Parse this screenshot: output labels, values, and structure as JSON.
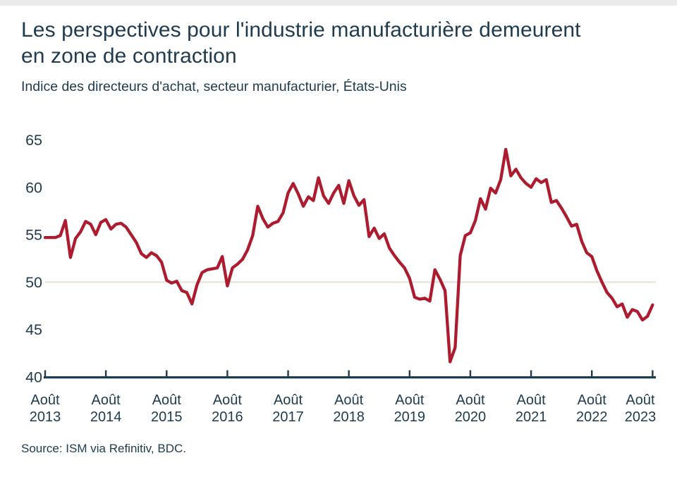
{
  "colors": {
    "line_red": "#AE1B2E",
    "text_navy": "#1E3B4F",
    "reference_beige": "#E7DFD2",
    "top_strip_gray": "#EBEBEB",
    "background": "#FFFFFF"
  },
  "chart_data": {
    "type": "line",
    "title": "Les perspectives pour l'industrie manufacturière demeurent en zone de contraction",
    "subtitle": "Indice des directeurs d'achat, secteur manufacturier, États-Unis",
    "source": "Source: ISM via Refinitiv, BDC.",
    "ylabel": "",
    "xlabel": "",
    "ylim": [
      40,
      65
    ],
    "y_ticks": [
      65,
      60,
      55,
      50,
      45,
      40
    ],
    "reference_line": 50,
    "grid": "reference-line-only",
    "legend": "none",
    "x_start": "Août 2013",
    "x_end": "Août 2023",
    "x_tick_labels": [
      {
        "month": "Août",
        "year": "2013"
      },
      {
        "month": "Août",
        "year": "2014"
      },
      {
        "month": "Août",
        "year": "2015"
      },
      {
        "month": "Août",
        "year": "2016"
      },
      {
        "month": "Août",
        "year": "2017"
      },
      {
        "month": "Août",
        "year": "2018"
      },
      {
        "month": "Août",
        "year": "2019"
      },
      {
        "month": "Août",
        "year": "2020"
      },
      {
        "month": "Août",
        "year": "2021"
      },
      {
        "month": "Août",
        "year": "2022"
      },
      {
        "month": "Août",
        "year": "2023"
      }
    ],
    "series": [
      {
        "name": "Indice des directeurs d'achat (PMI), secteur manufacturier, États-Unis",
        "color": "#AE1B2E",
        "frequency": "monthly",
        "values": [
          54.7,
          54.7,
          54.7,
          54.9,
          56.5,
          52.6,
          54.6,
          55.3,
          56.4,
          56.1,
          55.0,
          56.3,
          56.6,
          55.6,
          56.1,
          56.2,
          55.8,
          55.0,
          54.2,
          53.0,
          52.6,
          53.1,
          52.8,
          52.1,
          50.2,
          49.9,
          50.1,
          49.1,
          48.9,
          47.7,
          49.7,
          51.0,
          51.3,
          51.4,
          51.5,
          52.7,
          49.6,
          51.5,
          51.9,
          52.4,
          53.4,
          54.9,
          58.0,
          56.7,
          55.8,
          56.2,
          56.4,
          57.3,
          59.4,
          60.4,
          59.3,
          58.0,
          59.0,
          58.6,
          61.0,
          59.1,
          58.3,
          59.4,
          60.2,
          58.3,
          60.7,
          59.1,
          58.1,
          58.7,
          54.8,
          55.7,
          54.6,
          55.1,
          53.6,
          52.8,
          52.1,
          51.5,
          50.4,
          48.4,
          48.2,
          48.3,
          48.0,
          51.3,
          50.3,
          49.1,
          41.6,
          43.1,
          52.8,
          54.9,
          55.2,
          56.5,
          58.8,
          57.7,
          59.9,
          59.4,
          60.8,
          64.0,
          61.2,
          61.9,
          61.0,
          60.4,
          60.0,
          60.9,
          60.5,
          60.8,
          58.4,
          58.6,
          57.8,
          56.9,
          55.9,
          56.1,
          54.3,
          53.1,
          52.7,
          51.2,
          50.0,
          48.9,
          48.3,
          47.4,
          47.7,
          46.3,
          47.1,
          46.9,
          46.0,
          46.4,
          47.6
        ]
      }
    ]
  }
}
